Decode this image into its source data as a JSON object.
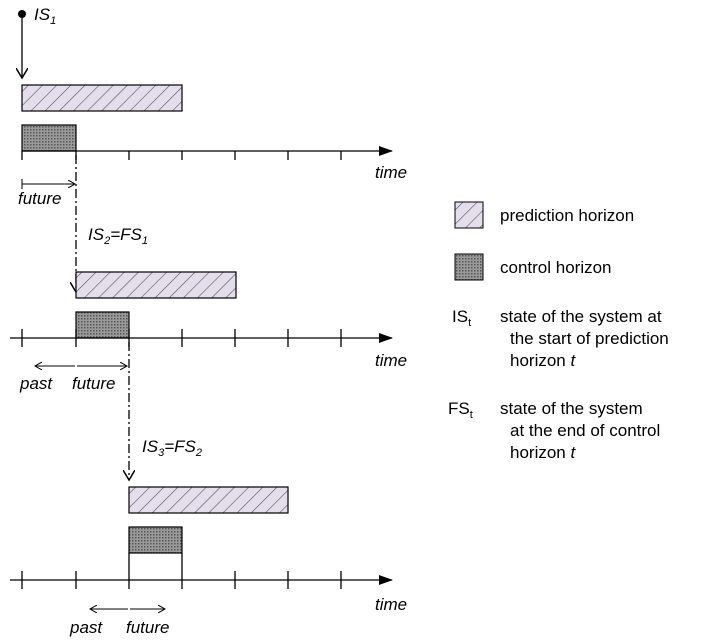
{
  "labels": {
    "row1_state": [
      "IS",
      "1"
    ],
    "row2_state": [
      "IS",
      "2",
      "=FS",
      "1"
    ],
    "row3_state": [
      "IS",
      "3",
      "=FS",
      "2"
    ]
  },
  "rows": [
    {
      "axis_label": "time",
      "future": "future"
    },
    {
      "axis_label": "time",
      "past": "past",
      "future": "future"
    },
    {
      "axis_label": "time",
      "past": "past",
      "future": "future"
    }
  ],
  "legend": {
    "prediction": "prediction horizon",
    "control": "control horizon",
    "is": {
      "symbol": [
        "IS",
        "t"
      ],
      "lines": [
        "state of the system at",
        "the start of prediction",
        "horizon "
      ],
      "italic": "t"
    },
    "fs": {
      "symbol": [
        "FS",
        "t"
      ],
      "lines": [
        "state of the system",
        "at the end of control",
        "horizon "
      ],
      "italic": "t"
    }
  }
}
